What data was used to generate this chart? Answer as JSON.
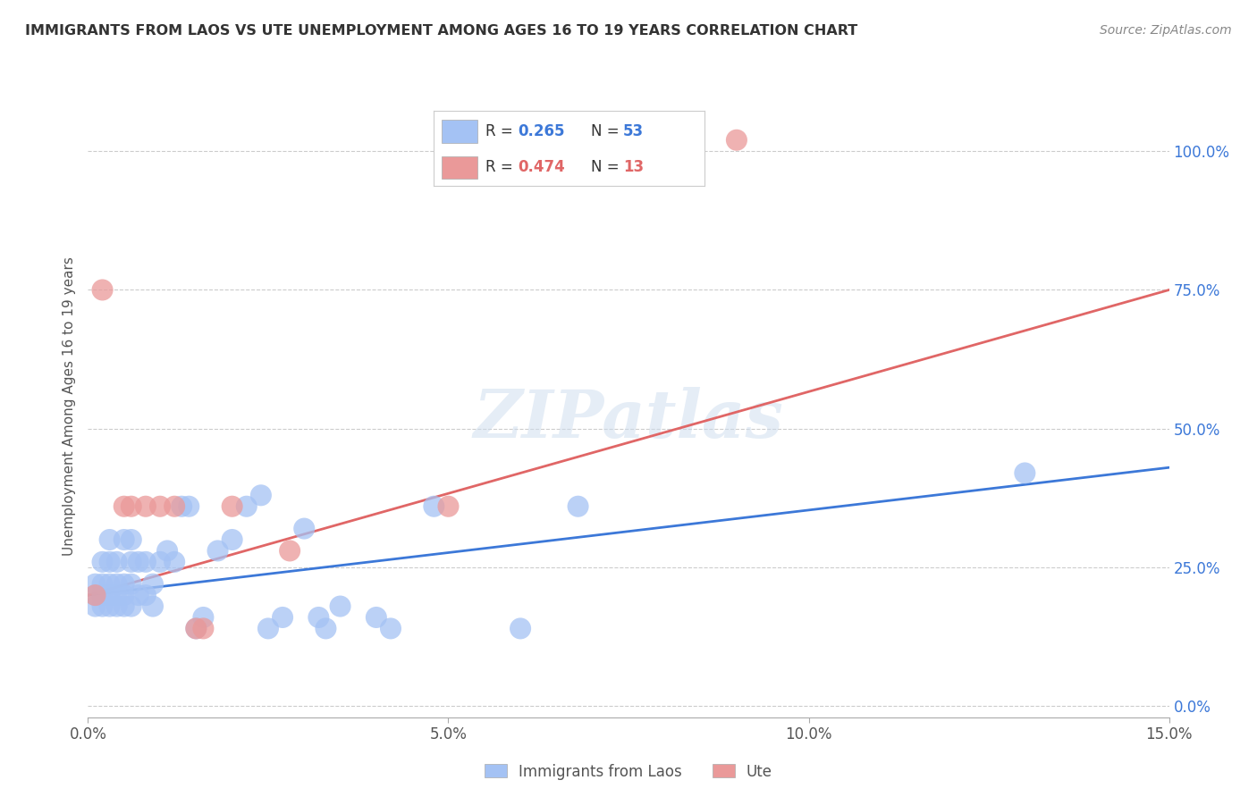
{
  "title": "IMMIGRANTS FROM LAOS VS UTE UNEMPLOYMENT AMONG AGES 16 TO 19 YEARS CORRELATION CHART",
  "source": "Source: ZipAtlas.com",
  "ylabel": "Unemployment Among Ages 16 to 19 years",
  "xlim": [
    0,
    0.15
  ],
  "ylim": [
    -0.02,
    1.1
  ],
  "xticks": [
    0.0,
    0.05,
    0.1,
    0.15
  ],
  "xticklabels": [
    "0.0%",
    "5.0%",
    "10.0%",
    "15.0%"
  ],
  "yticks": [
    0.0,
    0.25,
    0.5,
    0.75,
    1.0
  ],
  "yticklabels": [
    "0.0%",
    "25.0%",
    "50.0%",
    "75.0%",
    "100.0%"
  ],
  "blue_color": "#a4c2f4",
  "pink_color": "#ea9999",
  "blue_line_color": "#3c78d8",
  "pink_line_color": "#e06666",
  "legend_r1": "0.265",
  "legend_n1": "53",
  "legend_r2": "0.474",
  "legend_n2": "13",
  "watermark": "ZIPatlas",
  "blue_line_y0": 0.2,
  "blue_line_y1": 0.43,
  "pink_line_y0": 0.2,
  "pink_line_y1": 0.75,
  "blue_x": [
    0.001,
    0.001,
    0.001,
    0.002,
    0.002,
    0.002,
    0.002,
    0.003,
    0.003,
    0.003,
    0.003,
    0.003,
    0.004,
    0.004,
    0.004,
    0.004,
    0.005,
    0.005,
    0.005,
    0.005,
    0.006,
    0.006,
    0.006,
    0.006,
    0.007,
    0.007,
    0.008,
    0.008,
    0.009,
    0.009,
    0.01,
    0.011,
    0.012,
    0.013,
    0.014,
    0.015,
    0.016,
    0.018,
    0.02,
    0.022,
    0.024,
    0.025,
    0.027,
    0.03,
    0.032,
    0.033,
    0.035,
    0.04,
    0.042,
    0.048,
    0.06,
    0.068,
    0.13
  ],
  "blue_y": [
    0.18,
    0.2,
    0.22,
    0.18,
    0.2,
    0.22,
    0.26,
    0.18,
    0.2,
    0.22,
    0.26,
    0.3,
    0.18,
    0.2,
    0.22,
    0.26,
    0.18,
    0.2,
    0.22,
    0.3,
    0.18,
    0.22,
    0.26,
    0.3,
    0.2,
    0.26,
    0.2,
    0.26,
    0.18,
    0.22,
    0.26,
    0.28,
    0.26,
    0.36,
    0.36,
    0.14,
    0.16,
    0.28,
    0.3,
    0.36,
    0.38,
    0.14,
    0.16,
    0.32,
    0.16,
    0.14,
    0.18,
    0.16,
    0.14,
    0.36,
    0.14,
    0.36,
    0.42
  ],
  "pink_x": [
    0.001,
    0.002,
    0.005,
    0.006,
    0.008,
    0.01,
    0.012,
    0.015,
    0.016,
    0.02,
    0.028,
    0.05,
    0.09
  ],
  "pink_y": [
    0.2,
    0.75,
    0.36,
    0.36,
    0.36,
    0.36,
    0.36,
    0.14,
    0.14,
    0.36,
    0.28,
    0.36,
    1.02
  ]
}
